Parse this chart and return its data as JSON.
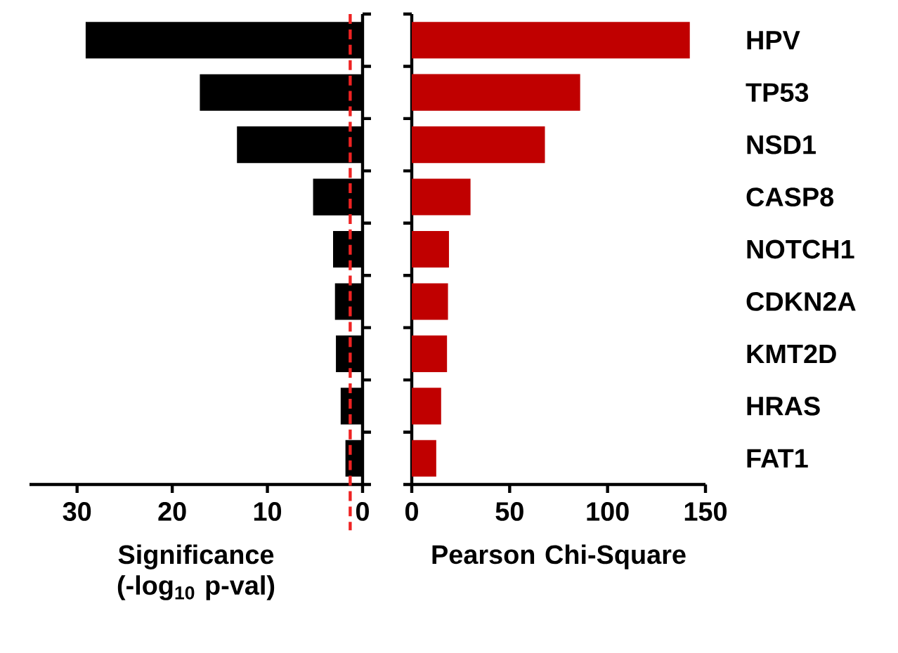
{
  "chart_data": [
    {
      "type": "bar",
      "orientation": "horizontal",
      "categories": [
        null,
        null,
        null,
        null,
        null,
        null,
        null,
        null,
        null
      ],
      "tick_labels": "x",
      "values": [
        29.1,
        17.1,
        13.2,
        5.2,
        3.1,
        2.9,
        2.8,
        2.3,
        1.8
      ],
      "color": "#000000",
      "xlim": [
        35,
        0
      ],
      "xticks": [
        30,
        20,
        10,
        0
      ],
      "xlabel": "Significance (-log$_{10}$ p-val)",
      "ref_lines": [
        {
          "axis": "x",
          "value": 1.3,
          "color": "#ee2222",
          "line_style": "dashed"
        }
      ]
    },
    {
      "type": "bar",
      "orientation": "horizontal",
      "categories": [
        "HPV",
        "TP53",
        "NSD1",
        "CASP8",
        "NOTCH1",
        "CDKN2A",
        "KMT2D",
        "HRAS",
        "FAT1"
      ],
      "values": [
        142,
        86,
        68,
        30,
        19,
        18.5,
        18,
        15,
        12.5
      ],
      "color": "#c00000",
      "xlim": [
        0,
        150
      ],
      "xticks": [
        0,
        50,
        100,
        150
      ],
      "xlabel": "Pearson Chi-Square"
    }
  ]
}
